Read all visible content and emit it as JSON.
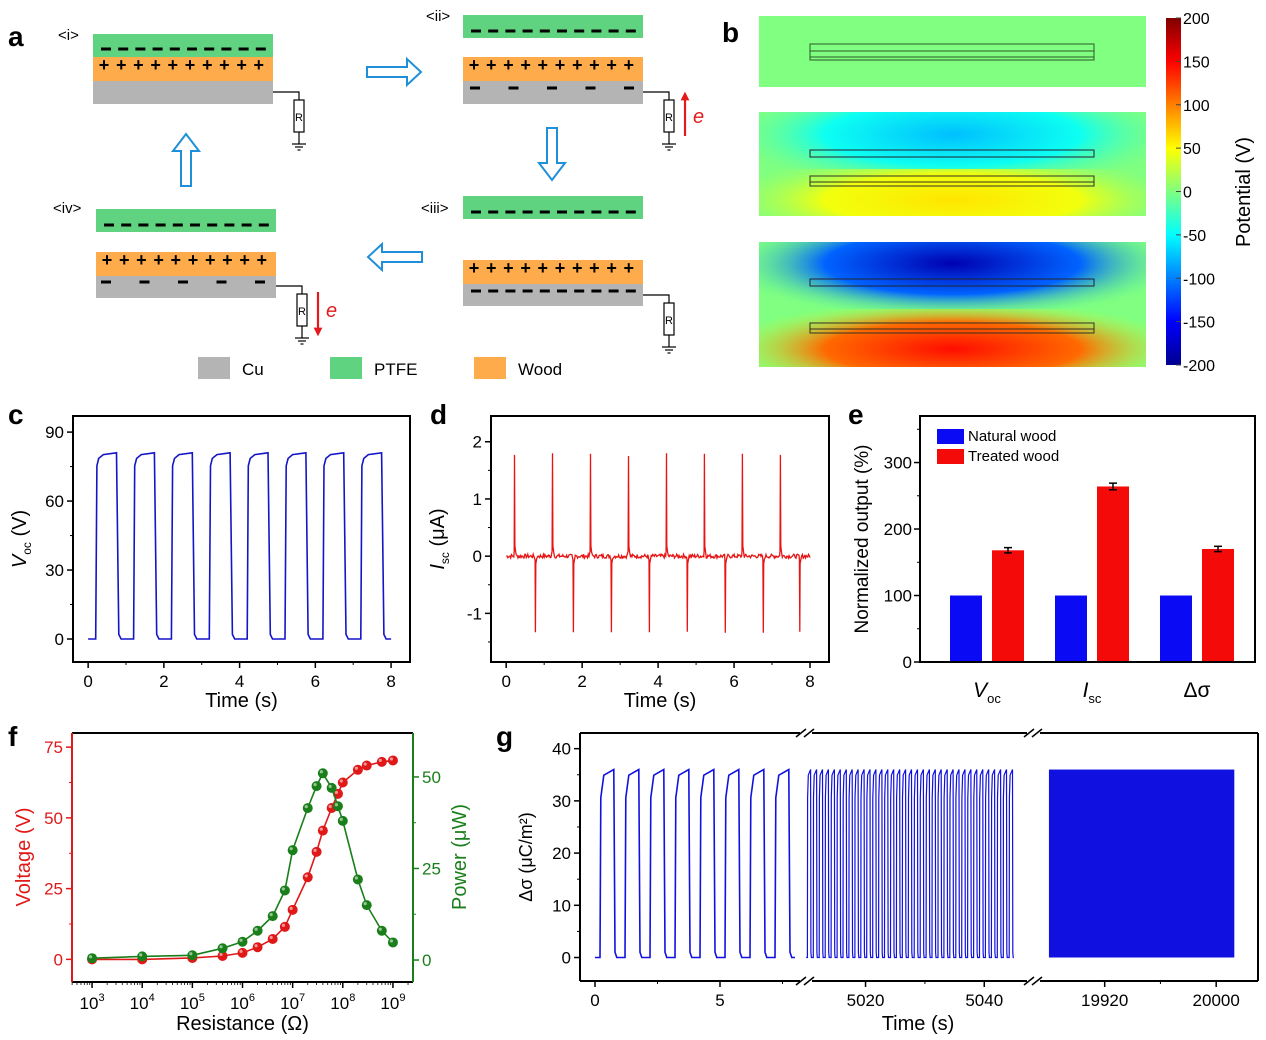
{
  "panel_labels": [
    "a",
    "b",
    "c",
    "d",
    "e",
    "f",
    "g"
  ],
  "panel_a": {
    "stages": [
      {
        "label": "<i>",
        "electrode_charges": "none",
        "electron_arrow": "none"
      },
      {
        "label": "<ii>",
        "electrode_charges": "sparse-negative",
        "electron_arrow": "up"
      },
      {
        "label": "<iii>",
        "electrode_charges": "dense-negative",
        "electron_arrow": "none"
      },
      {
        "label": "<iv>",
        "electrode_charges": "sparse-negative",
        "electron_arrow": "down"
      }
    ],
    "resistor_label": "R",
    "electron_label": "e",
    "legend": [
      {
        "label": "Cu",
        "color": "#b4b4b4"
      },
      {
        "label": "PTFE",
        "color": "#5fd37f"
      },
      {
        "label": "Wood",
        "color": "#fdab4b"
      }
    ],
    "colors": {
      "ptfe": "#5fd37f",
      "wood": "#fdab4b",
      "cu": "#b4b4b4",
      "flow_arrow": "#1e8fd8",
      "electron_arrow": "#e31a1c"
    }
  },
  "panel_b": {
    "colorbar": {
      "label": "Potential (V)",
      "ticks": [
        "200",
        "150",
        "100",
        "50",
        "0",
        "-50",
        "-100",
        "-150",
        "-200"
      ],
      "range": [
        -200,
        200
      ]
    },
    "maps": [
      {
        "state": "contact",
        "top_potential": 0,
        "bottom_potential": 0
      },
      {
        "state": "partial-separation",
        "top_potential": -75,
        "bottom_potential": 60
      },
      {
        "state": "full-separation",
        "top_potential": -185,
        "bottom_potential": 145
      }
    ]
  },
  "chart_data": [
    {
      "id": "c",
      "type": "line",
      "title": "",
      "xlabel": "Time (s)",
      "ylabel_main": "V",
      "ylabel_sub": "oc",
      "ylabel_unit": " (V)",
      "xlim": [
        -0.4,
        8.5
      ],
      "ylim": [
        -10,
        97
      ],
      "xticks": [
        0,
        2,
        4,
        6,
        8
      ],
      "yticks": [
        0,
        30,
        60,
        90
      ],
      "color": "#1414c8",
      "pulse": {
        "period_s": 1.0,
        "start_s": 0.2,
        "high_duration_s": 0.55,
        "high_value": 81,
        "low_value": 0,
        "cycles": 8,
        "end_s": 8.0
      }
    },
    {
      "id": "d",
      "type": "line",
      "title": "",
      "xlabel": "Time (s)",
      "ylabel_main": "I",
      "ylabel_sub": "sc",
      "ylabel_unit": " (μA)",
      "xlim": [
        -0.4,
        8.5
      ],
      "ylim": [
        -1.85,
        2.45
      ],
      "xticks": [
        0,
        2,
        4,
        6,
        8
      ],
      "yticks": [
        -1,
        0,
        1,
        2
      ],
      "color": "#e81414",
      "positive_peaks": [
        {
          "t": 0.22,
          "v": 1.77
        },
        {
          "t": 1.22,
          "v": 1.8
        },
        {
          "t": 2.22,
          "v": 1.79
        },
        {
          "t": 3.22,
          "v": 1.75
        },
        {
          "t": 4.22,
          "v": 1.8
        },
        {
          "t": 5.22,
          "v": 1.79
        },
        {
          "t": 6.22,
          "v": 1.79
        },
        {
          "t": 7.22,
          "v": 1.77
        }
      ],
      "negative_peaks": [
        {
          "t": 0.77,
          "v": -1.33
        },
        {
          "t": 1.77,
          "v": -1.33
        },
        {
          "t": 2.77,
          "v": -1.33
        },
        {
          "t": 3.77,
          "v": -1.33
        },
        {
          "t": 4.77,
          "v": -1.32
        },
        {
          "t": 5.77,
          "v": -1.34
        },
        {
          "t": 6.77,
          "v": -1.34
        },
        {
          "t": 7.73,
          "v": -1.32
        }
      ]
    },
    {
      "id": "e",
      "type": "bar",
      "title": "",
      "xlabel": "",
      "ylabel": "Normalized output (%)",
      "ylim": [
        0,
        370
      ],
      "yticks": [
        0,
        100,
        200,
        300
      ],
      "categories": [
        {
          "main": "V",
          "sub": "oc",
          "italic": true
        },
        {
          "main": "I",
          "sub": "sc",
          "italic": true
        },
        {
          "main": "Δσ",
          "sub": "",
          "italic": false
        }
      ],
      "series": [
        {
          "name": "Natural wood",
          "color": "#0a0af5",
          "values": [
            100,
            100,
            100
          ],
          "errors": [
            0,
            0,
            0
          ]
        },
        {
          "name": "Treated wood",
          "color": "#f50a0a",
          "values": [
            168,
            264,
            170
          ],
          "errors": [
            4,
            5,
            4
          ]
        }
      ],
      "legend_position": "top-left"
    },
    {
      "id": "f",
      "type": "line",
      "title": "",
      "xlabel": "Resistance (Ω)",
      "xscale": "log",
      "xlim_exp": [
        2.6,
        9.4
      ],
      "xticks_exp": [
        3,
        4,
        5,
        6,
        7,
        8,
        9
      ],
      "series": [
        {
          "name": "Voltage",
          "axis": "left",
          "ylabel": "Voltage (V)",
          "color": "#e01818",
          "ylim": [
            -8,
            80
          ],
          "yticks": [
            0,
            25,
            50,
            75
          ],
          "x": [
            1000.0,
            10000.0,
            100000.0,
            400000.0,
            1000000.0,
            2000000.0,
            4000000.0,
            7000000.0,
            10000000.0,
            20000000.0,
            30000000.0,
            40000000.0,
            60000000.0,
            80000000.0,
            100000000.0,
            200000000.0,
            300000000.0,
            600000000.0,
            1000000000.0
          ],
          "y": [
            0,
            0,
            0.5,
            1.2,
            2.3,
            4.3,
            7.2,
            11.5,
            17.5,
            29,
            38,
            45.5,
            53.5,
            58.5,
            62.5,
            67,
            68.5,
            69.8,
            70.3
          ]
        },
        {
          "name": "Power",
          "axis": "right",
          "ylabel": "Power (μW)",
          "color": "#1a7f1a",
          "ylim": [
            -6,
            62
          ],
          "yticks": [
            0,
            25,
            50
          ],
          "x": [
            1000.0,
            10000.0,
            100000.0,
            400000.0,
            1000000.0,
            2000000.0,
            4000000.0,
            7000000.0,
            10000000.0,
            20000000.0,
            30000000.0,
            40000000.0,
            60000000.0,
            80000000.0,
            100000000.0,
            200000000.0,
            300000000.0,
            600000000.0,
            1000000000.0
          ],
          "y": [
            0.5,
            1,
            1.3,
            3.2,
            5,
            8,
            12,
            19,
            30,
            41.5,
            47.5,
            51,
            47,
            42,
            38,
            22,
            15,
            8,
            4.8
          ]
        }
      ]
    },
    {
      "id": "g",
      "type": "line",
      "title": "",
      "xlabel": "Time (s)",
      "ylabel": "Δσ (μC/m²)",
      "ylim": [
        -4.5,
        43
      ],
      "yticks": [
        0,
        10,
        20,
        30,
        40
      ],
      "color": "#1010e0",
      "broken_axis": true,
      "segments": [
        {
          "xlim": [
            -0.6,
            8.2
          ],
          "xticks": [
            0,
            5
          ],
          "minor_ticks": [
            2.5,
            7.5
          ],
          "t_start": 0,
          "t_end": 8,
          "cycles": 8,
          "style": "individual"
        },
        {
          "xlim": [
            5009.8,
            5047.2
          ],
          "xticks": [
            5020,
            5040
          ],
          "minor_ticks": [
            5030
          ],
          "t_start": 5010,
          "t_end": 5045,
          "cycles": 35,
          "style": "dense"
        },
        {
          "xlim": [
            19870,
            20030
          ],
          "xticks": [
            19920,
            20000
          ],
          "minor_ticks": [
            19960
          ],
          "t_start": 19880,
          "t_end": 20013,
          "cycles": 133,
          "style": "solid"
        }
      ],
      "pulse_high": 36,
      "pulse_low": 0
    }
  ]
}
